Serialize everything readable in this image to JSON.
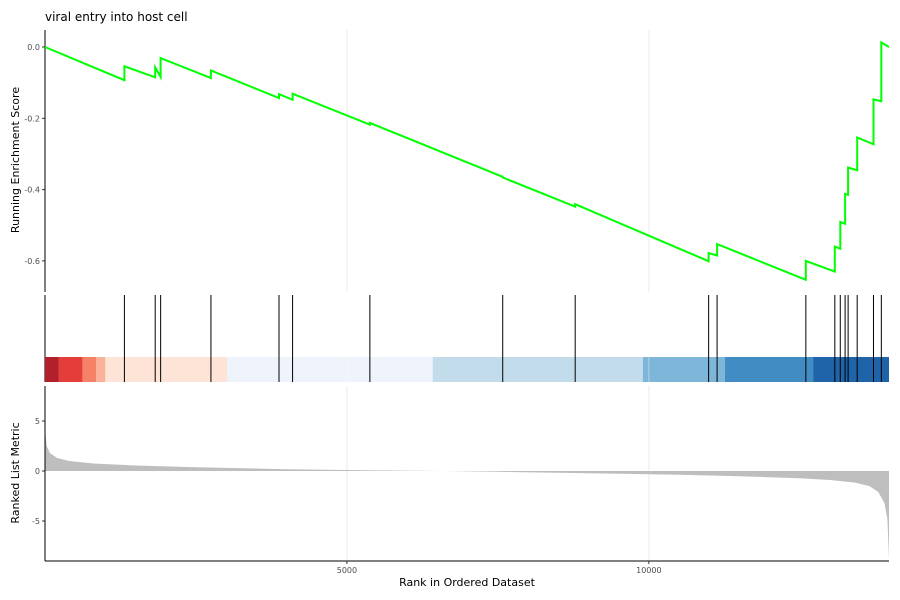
{
  "chart_data": {
    "type": "line",
    "title": "viral entry into host cell",
    "x_axis": {
      "label": "Rank in Ordered Dataset",
      "range": [
        0,
        13977
      ],
      "ticks": [
        5000,
        10000
      ]
    },
    "panels": [
      {
        "name": "running-enrichment",
        "ylabel": "Running Enrichment Score",
        "ylim": [
          -0.655,
          0.0
        ],
        "yticks": [
          0.0,
          -0.2,
          -0.4,
          -0.6
        ],
        "ytick_labels": [
          "0.0",
          "-0.2",
          "-0.4",
          "-0.6"
        ],
        "line_color": "#00ff00",
        "points": [
          [
            0,
            0.0
          ],
          [
            1315,
            -0.093
          ],
          [
            1315,
            -0.054
          ],
          [
            1825,
            -0.085
          ],
          [
            1825,
            -0.057
          ],
          [
            1915,
            -0.084
          ],
          [
            1915,
            -0.031
          ],
          [
            2748,
            -0.087
          ],
          [
            2748,
            -0.066
          ],
          [
            3875,
            -0.143
          ],
          [
            3875,
            -0.132
          ],
          [
            4100,
            -0.148
          ],
          [
            4100,
            -0.131
          ],
          [
            5380,
            -0.218
          ],
          [
            5380,
            -0.213
          ],
          [
            7580,
            -0.364
          ],
          [
            7580,
            -0.366
          ],
          [
            8780,
            -0.448
          ],
          [
            8780,
            -0.441
          ],
          [
            10990,
            -0.601
          ],
          [
            10990,
            -0.578
          ],
          [
            11130,
            -0.585
          ],
          [
            11130,
            -0.553
          ],
          [
            12600,
            -0.653
          ],
          [
            12600,
            -0.6
          ],
          [
            13080,
            -0.63
          ],
          [
            13080,
            -0.56
          ],
          [
            13170,
            -0.566
          ],
          [
            13170,
            -0.491
          ],
          [
            13250,
            -0.496
          ],
          [
            13250,
            -0.412
          ],
          [
            13300,
            -0.415
          ],
          [
            13300,
            -0.338
          ],
          [
            13450,
            -0.346
          ],
          [
            13450,
            -0.254
          ],
          [
            13720,
            -0.273
          ],
          [
            13720,
            -0.147
          ],
          [
            13850,
            -0.152
          ],
          [
            13850,
            0.013
          ],
          [
            13977,
            0.0
          ]
        ]
      },
      {
        "name": "gene-hits",
        "hit_positions": [
          1315,
          1825,
          1915,
          2748,
          3875,
          4100,
          5380,
          7580,
          8780,
          10990,
          11130,
          12600,
          13080,
          13170,
          13250,
          13300,
          13450,
          13720,
          13850
        ]
      },
      {
        "name": "ranked-list-metric",
        "ylabel": "Ranked List Metric",
        "ylim": [
          -9.0,
          8.5
        ],
        "yticks": [
          5,
          0,
          -5
        ],
        "ytick_labels": [
          "5",
          "0",
          "-5"
        ],
        "fill_color": "#bebebe",
        "curve": [
          [
            0,
            4.1
          ],
          [
            30,
            2.5
          ],
          [
            80,
            1.8
          ],
          [
            200,
            1.3
          ],
          [
            400,
            1.0
          ],
          [
            800,
            0.75
          ],
          [
            1500,
            0.55
          ],
          [
            2500,
            0.38
          ],
          [
            4000,
            0.18
          ],
          [
            5500,
            0.06
          ],
          [
            6600,
            0.0
          ],
          [
            7500,
            -0.08
          ],
          [
            9000,
            -0.22
          ],
          [
            10500,
            -0.38
          ],
          [
            11500,
            -0.52
          ],
          [
            12500,
            -0.72
          ],
          [
            13000,
            -0.9
          ],
          [
            13400,
            -1.15
          ],
          [
            13650,
            -1.5
          ],
          [
            13800,
            -2.1
          ],
          [
            13900,
            -3.2
          ],
          [
            13950,
            -4.8
          ],
          [
            13977,
            -8.8
          ]
        ]
      }
    ],
    "color_bands": [
      {
        "x0": 0,
        "x1": 230,
        "color": "#b2202b"
      },
      {
        "x0": 230,
        "x1": 620,
        "color": "#e43d3a"
      },
      {
        "x0": 620,
        "x1": 850,
        "color": "#f58166"
      },
      {
        "x0": 850,
        "x1": 1000,
        "color": "#fbb29a"
      },
      {
        "x0": 1000,
        "x1": 3020,
        "color": "#fde4d7"
      },
      {
        "x0": 3020,
        "x1": 6420,
        "color": "#eef3fc"
      },
      {
        "x0": 6420,
        "x1": 9900,
        "color": "#c3dceb"
      },
      {
        "x0": 9900,
        "x1": 11260,
        "color": "#7db6d9"
      },
      {
        "x0": 11260,
        "x1": 12720,
        "color": "#428cc4"
      },
      {
        "x0": 12720,
        "x1": 13977,
        "color": "#1f63a8"
      }
    ],
    "grid": true
  }
}
